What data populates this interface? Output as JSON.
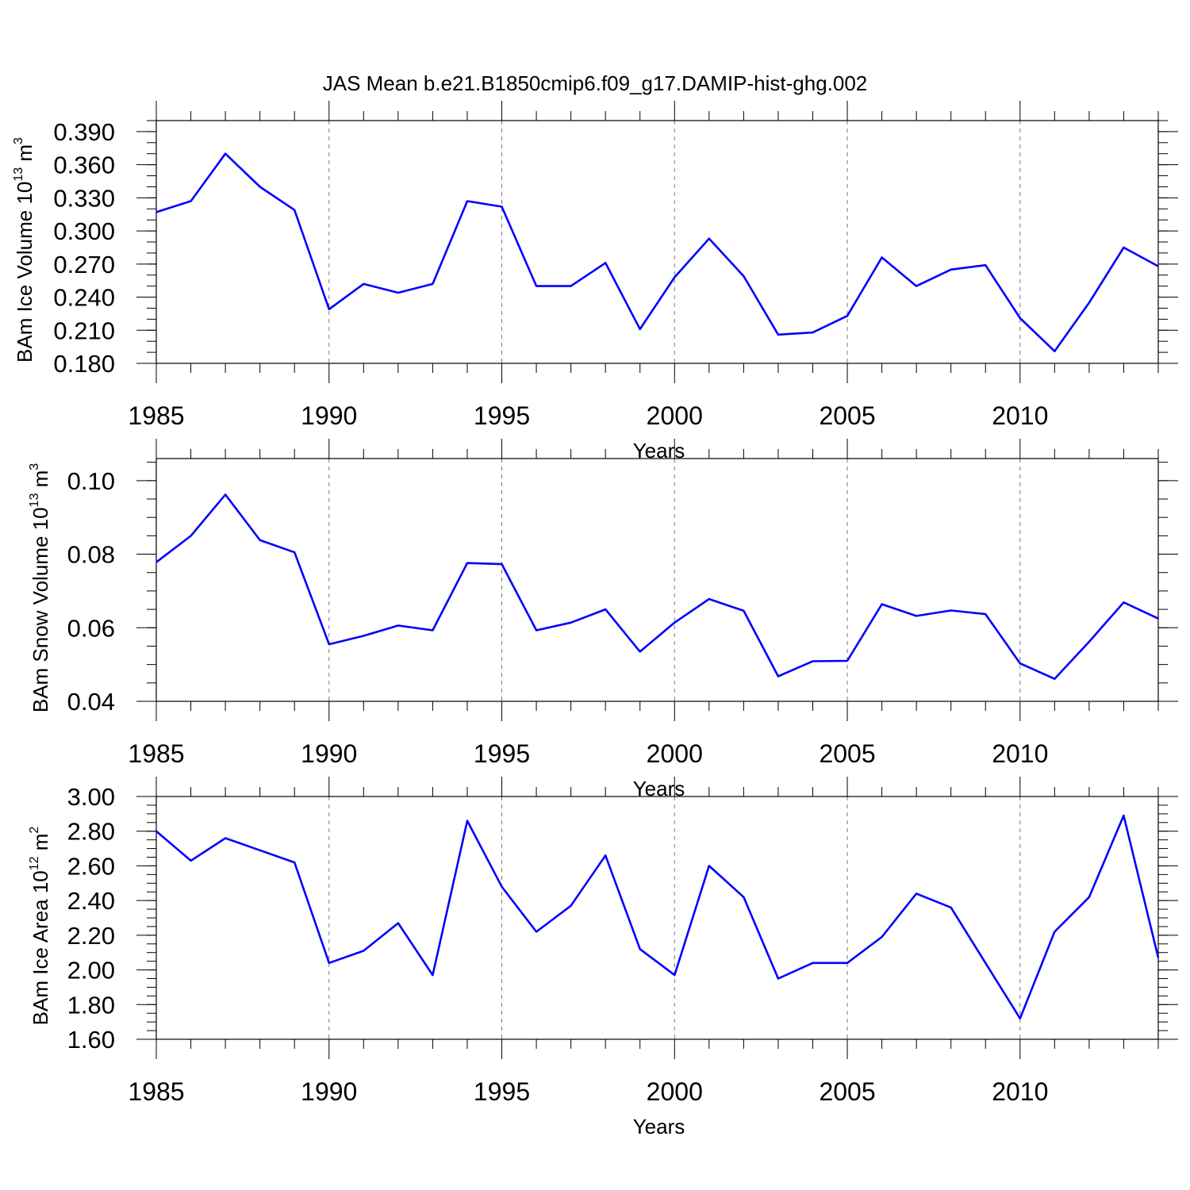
{
  "title": "JAS Mean b.e21.B1850cmip6.f09_g17.DAMIP-hist-ghg.002",
  "line_color": "#0000ff",
  "chart_data": [
    {
      "type": "line",
      "title": "JAS Mean b.e21.B1850cmip6.f09_g17.DAMIP-hist-ghg.002",
      "xlabel": "Years",
      "ylabel_main": "BAm Ice Volume 10",
      "ylabel_sup": "13",
      "ylabel_unit": " m",
      "ylabel_unit_sup": "3",
      "xlim": [
        1985,
        2014
      ],
      "ylim": [
        0.18,
        0.4
      ],
      "yticks": [
        0.18,
        0.21,
        0.24,
        0.27,
        0.3,
        0.33,
        0.36,
        0.39
      ],
      "yticklabels": [
        "0.180",
        "0.210",
        "0.240",
        "0.270",
        "0.300",
        "0.330",
        "0.360",
        "0.390"
      ],
      "yminor": 0.01,
      "xticks": [
        1985,
        1990,
        1995,
        2000,
        2005,
        2010
      ],
      "xticklabels": [
        "1985",
        "1990",
        "1995",
        "2000",
        "2005",
        "2010"
      ],
      "x": [
        1985,
        1986,
        1987,
        1988,
        1989,
        1990,
        1991,
        1992,
        1993,
        1994,
        1995,
        1996,
        1997,
        1998,
        1999,
        2000,
        2001,
        2002,
        2003,
        2004,
        2005,
        2006,
        2007,
        2008,
        2009,
        2010,
        2011,
        2012,
        2013,
        2014
      ],
      "y": [
        0.317,
        0.327,
        0.37,
        0.34,
        0.319,
        0.229,
        0.252,
        0.244,
        0.252,
        0.327,
        0.322,
        0.25,
        0.25,
        0.271,
        0.211,
        0.258,
        0.293,
        0.259,
        0.206,
        0.208,
        0.223,
        0.276,
        0.25,
        0.265,
        0.269,
        0.221,
        0.191,
        0.235,
        0.285,
        0.268
      ]
    },
    {
      "type": "line",
      "xlabel": "Years",
      "ylabel_main": "BAm Snow Volume 10",
      "ylabel_sup": "13",
      "ylabel_unit": " m",
      "ylabel_unit_sup": "3",
      "xlim": [
        1985,
        2014
      ],
      "ylim": [
        0.04,
        0.106
      ],
      "yticks": [
        0.04,
        0.06,
        0.08,
        0.1
      ],
      "yticklabels": [
        "0.04",
        "0.06",
        "0.08",
        "0.10"
      ],
      "yminor": 0.005,
      "xticks": [
        1985,
        1990,
        1995,
        2000,
        2005,
        2010
      ],
      "xticklabels": [
        "1985",
        "1990",
        "1995",
        "2000",
        "2005",
        "2010"
      ],
      "x": [
        1985,
        1986,
        1987,
        1988,
        1989,
        1990,
        1991,
        1992,
        1993,
        1994,
        1995,
        1996,
        1997,
        1998,
        1999,
        2000,
        2001,
        2002,
        2003,
        2004,
        2005,
        2006,
        2007,
        2008,
        2009,
        2010,
        2011,
        2012,
        2013,
        2014
      ],
      "y": [
        0.0778,
        0.085,
        0.0962,
        0.0838,
        0.0805,
        0.0555,
        0.0578,
        0.0606,
        0.0593,
        0.0776,
        0.0773,
        0.0593,
        0.0614,
        0.065,
        0.0535,
        0.0614,
        0.0678,
        0.0646,
        0.0468,
        0.0509,
        0.051,
        0.0664,
        0.0632,
        0.0647,
        0.0637,
        0.0503,
        0.0461,
        0.0562,
        0.0669,
        0.0625
      ]
    },
    {
      "type": "line",
      "xlabel": "Years",
      "ylabel_main": "BAm Ice Area 10",
      "ylabel_sup": "12",
      "ylabel_unit": " m",
      "ylabel_unit_sup": "2",
      "xlim": [
        1985,
        2014
      ],
      "ylim": [
        1.6,
        3.0
      ],
      "yticks": [
        1.6,
        1.8,
        2.0,
        2.2,
        2.4,
        2.6,
        2.8,
        3.0
      ],
      "yticklabels": [
        "1.60",
        "1.80",
        "2.00",
        "2.20",
        "2.40",
        "2.60",
        "2.80",
        "3.00"
      ],
      "yminor": 0.05,
      "xticks": [
        1985,
        1990,
        1995,
        2000,
        2005,
        2010
      ],
      "xticklabels": [
        "1985",
        "1990",
        "1995",
        "2000",
        "2005",
        "2010"
      ],
      "x": [
        1985,
        1986,
        1987,
        1988,
        1989,
        1990,
        1991,
        1992,
        1993,
        1994,
        1995,
        1996,
        1997,
        1998,
        1999,
        2000,
        2001,
        2002,
        2003,
        2004,
        2005,
        2006,
        2007,
        2008,
        2009,
        2010,
        2011,
        2012,
        2013,
        2014
      ],
      "y": [
        2.8,
        2.63,
        2.76,
        2.69,
        2.62,
        2.04,
        2.11,
        2.27,
        1.97,
        2.86,
        2.48,
        2.22,
        2.37,
        2.66,
        2.12,
        1.97,
        2.6,
        2.42,
        1.95,
        2.04,
        2.04,
        2.19,
        2.44,
        2.36,
        2.04,
        1.72,
        2.22,
        2.42,
        2.89,
        2.07
      ]
    }
  ]
}
